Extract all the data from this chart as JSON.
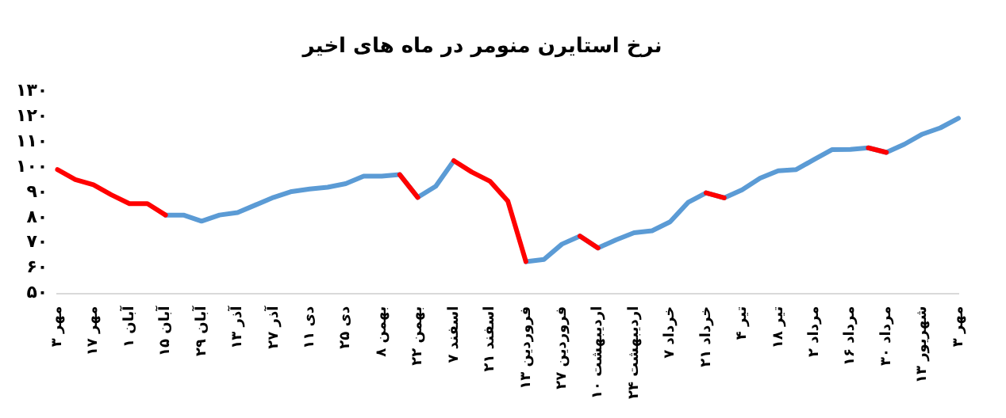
{
  "chart_data": {
    "type": "line",
    "title": "نرخ استایرن منومر در ماه های اخیر",
    "categories": [
      "۳ مهر",
      null,
      "۱۷ مهر",
      null,
      "۱ آبان",
      null,
      "۱۵ آبان",
      null,
      "۲۹ آبان",
      null,
      "۱۳ آذر",
      null,
      "۲۷ آذر",
      null,
      "۱۱ دی",
      null,
      "۲۵ دی",
      null,
      "۸ بهمن",
      null,
      "۲۲ بهمن",
      null,
      "۷ اسفند",
      null,
      "۲۱ اسفند",
      null,
      "۱۳ فروردین",
      null,
      "۲۷ فروردین",
      null,
      "۱۰ اردیبهشت",
      null,
      "۲۴ اردیبهشت",
      null,
      "۷ خرداد",
      null,
      "۲۱ خرداد",
      null,
      "۴ تیر",
      null,
      "۱۸ تیر",
      null,
      "۲ مرداد",
      null,
      "۱۶ مرداد",
      null,
      "۳۰ مرداد",
      null,
      "۱۳ شهریور",
      null,
      "۳ مهر"
    ],
    "series": [
      {
        "color": "#ff0000",
        "values": [
          99,
          95,
          93,
          89,
          85.5,
          85.5,
          81,
          null,
          null,
          null,
          null,
          null,
          null,
          null,
          null,
          null,
          null,
          null,
          null,
          97,
          88,
          null,
          102.5,
          98,
          94.4,
          86.5,
          62.6,
          null,
          null,
          72.7,
          68,
          null,
          null,
          null,
          null,
          null,
          89.8,
          87.8,
          null,
          null,
          null,
          null,
          null,
          null,
          null,
          107.6,
          105.8,
          null,
          null,
          null,
          null
        ]
      },
      {
        "color": "#5b9bd5",
        "values": [
          null,
          null,
          null,
          null,
          null,
          null,
          81,
          81,
          78.6,
          81,
          82,
          85,
          88,
          90.3,
          91.3,
          92,
          93.4,
          96.4,
          96.4,
          97,
          88,
          92.4,
          102.5,
          null,
          null,
          null,
          62.6,
          63.4,
          69.5,
          72.7,
          68,
          71.2,
          74,
          74.8,
          78.3,
          86,
          89.8,
          87.8,
          91,
          95.6,
          98.5,
          99,
          103,
          106.9,
          107,
          107.6,
          105.8,
          109,
          113,
          115.5,
          119.3
        ]
      }
    ],
    "ylim": [
      50,
      130
    ],
    "yticks": [
      {
        "value": 50,
        "label": "۵۰"
      },
      {
        "value": 60,
        "label": "۶۰"
      },
      {
        "value": 70,
        "label": "۷۰"
      },
      {
        "value": 80,
        "label": "۸۰"
      },
      {
        "value": 90,
        "label": "۹۰"
      },
      {
        "value": 100,
        "label": "۱۰۰"
      },
      {
        "value": 110,
        "label": "۱۱۰"
      },
      {
        "value": 120,
        "label": "۱۲۰"
      },
      {
        "value": 130,
        "label": "۱۳۰"
      }
    ],
    "grid": false,
    "legend": false,
    "marker": "none",
    "line_style": "solid"
  }
}
